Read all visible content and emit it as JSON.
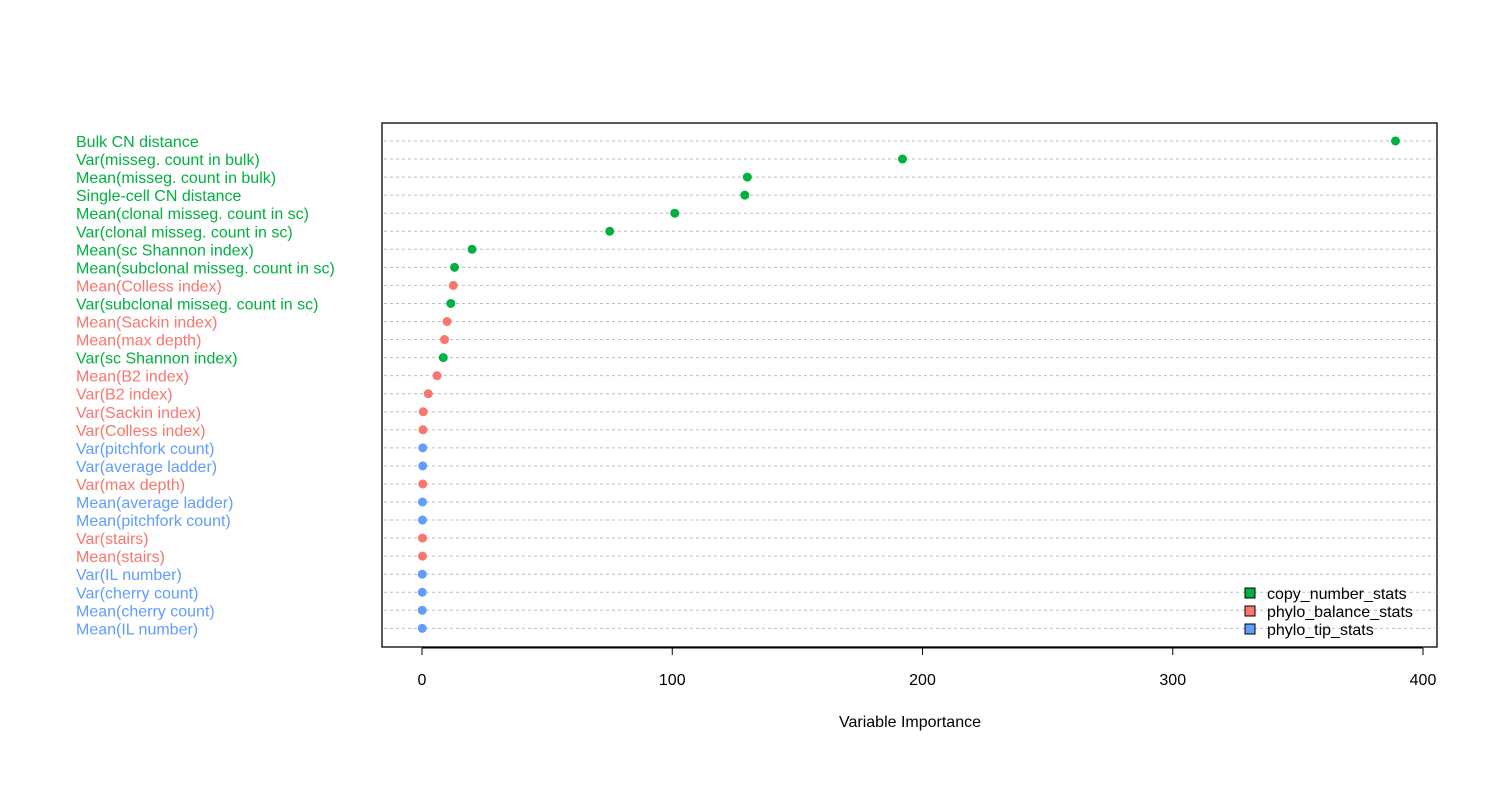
{
  "chart_data": {
    "type": "scatter",
    "title": "",
    "xlabel": "Variable Importance",
    "ylabel": "",
    "xlim": [
      -15,
      405
    ],
    "xticks": [
      0,
      100,
      200,
      300,
      400
    ],
    "grid": "horizontal dashed",
    "legend_position": "bottom-right",
    "groups": {
      "copy_number_stats": "#00B140",
      "phylo_balance_stats": "#F8766D",
      "phylo_tip_stats": "#619CFF"
    },
    "legend": [
      {
        "label": "copy_number_stats",
        "color": "#00B140"
      },
      {
        "label": "phylo_balance_stats",
        "color": "#F8766D"
      },
      {
        "label": "phylo_tip_stats",
        "color": "#619CFF"
      }
    ],
    "points": [
      {
        "label": "Bulk CN distance",
        "value": 389,
        "group": "copy_number_stats"
      },
      {
        "label": "Var(misseg. count in bulk)",
        "value": 192,
        "group": "copy_number_stats"
      },
      {
        "label": "Mean(misseg. count in bulk)",
        "value": 130,
        "group": "copy_number_stats"
      },
      {
        "label": "Single-cell CN distance",
        "value": 129,
        "group": "copy_number_stats"
      },
      {
        "label": "Mean(clonal misseg. count in sc)",
        "value": 101,
        "group": "copy_number_stats"
      },
      {
        "label": "Var(clonal misseg. count in sc)",
        "value": 75,
        "group": "copy_number_stats"
      },
      {
        "label": "Mean(sc Shannon index)",
        "value": 20,
        "group": "copy_number_stats"
      },
      {
        "label": "Mean(subclonal misseg. count in sc)",
        "value": 13,
        "group": "copy_number_stats"
      },
      {
        "label": "Mean(Colless index)",
        "value": 12.5,
        "group": "phylo_balance_stats"
      },
      {
        "label": "Var(subclonal misseg. count in sc)",
        "value": 11.5,
        "group": "copy_number_stats"
      },
      {
        "label": "Mean(Sackin index)",
        "value": 10,
        "group": "phylo_balance_stats"
      },
      {
        "label": "Mean(max depth)",
        "value": 9,
        "group": "phylo_balance_stats"
      },
      {
        "label": "Var(sc Shannon index)",
        "value": 8.5,
        "group": "copy_number_stats"
      },
      {
        "label": "Mean(B2 index)",
        "value": 6,
        "group": "phylo_balance_stats"
      },
      {
        "label": "Var(B2 index)",
        "value": 2.5,
        "group": "phylo_balance_stats"
      },
      {
        "label": "Var(Sackin index)",
        "value": 0.5,
        "group": "phylo_balance_stats"
      },
      {
        "label": "Var(Colless index)",
        "value": 0.4,
        "group": "phylo_balance_stats"
      },
      {
        "label": "Var(pitchfork count)",
        "value": 0.3,
        "group": "phylo_tip_stats"
      },
      {
        "label": "Var(average ladder)",
        "value": 0.3,
        "group": "phylo_tip_stats"
      },
      {
        "label": "Var(max depth)",
        "value": 0.3,
        "group": "phylo_balance_stats"
      },
      {
        "label": "Mean(average ladder)",
        "value": 0.2,
        "group": "phylo_tip_stats"
      },
      {
        "label": "Mean(pitchfork count)",
        "value": 0.2,
        "group": "phylo_tip_stats"
      },
      {
        "label": "Var(stairs)",
        "value": 0.2,
        "group": "phylo_balance_stats"
      },
      {
        "label": "Mean(stairs)",
        "value": 0.2,
        "group": "phylo_balance_stats"
      },
      {
        "label": "Var(IL number)",
        "value": 0.1,
        "group": "phylo_tip_stats"
      },
      {
        "label": "Var(cherry count)",
        "value": 0.1,
        "group": "phylo_tip_stats"
      },
      {
        "label": "Mean(cherry count)",
        "value": 0.1,
        "group": "phylo_tip_stats"
      },
      {
        "label": "Mean(IL number)",
        "value": 0.1,
        "group": "phylo_tip_stats"
      }
    ]
  }
}
